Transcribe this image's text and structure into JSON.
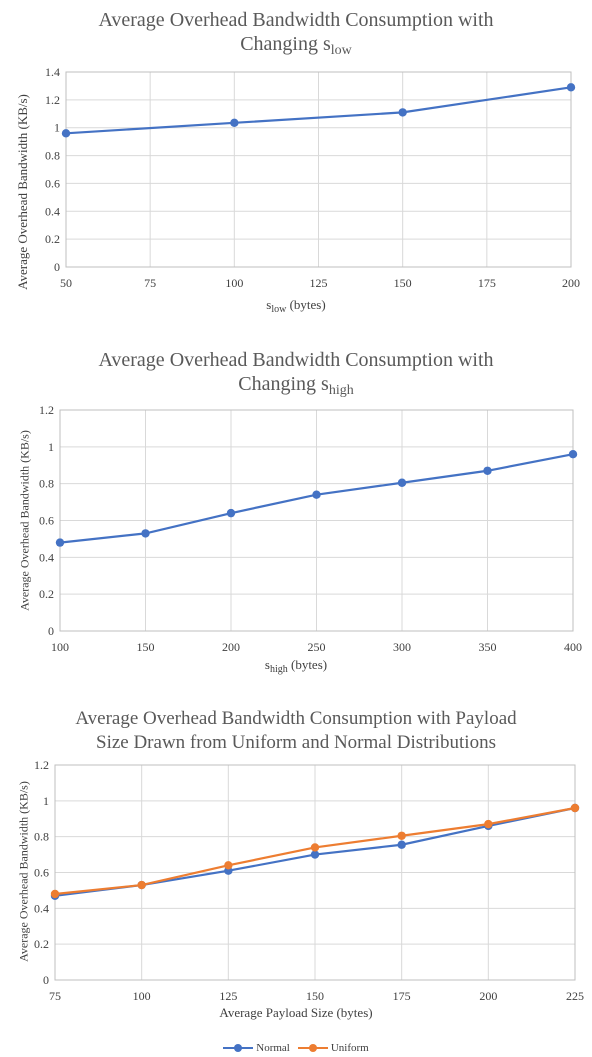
{
  "colors": {
    "normal": "#4472C4",
    "uniform": "#ED7D31",
    "grid": "#D9D9D9",
    "axis": "#BFBFBF"
  },
  "chart_data": [
    {
      "type": "line",
      "title_line1": "Average Overhead Bandwidth Consumption with",
      "title_line2_prefix": "Changing s",
      "title_line2_sub": "low",
      "xlabel_prefix": "s",
      "xlabel_sub": "low",
      "xlabel_suffix": " (bytes)",
      "ylabel": "Average Overhead Bandwidth (KB/s)",
      "xlim": [
        50,
        200
      ],
      "ylim": [
        0,
        1.4
      ],
      "xticks": [
        "50",
        "75",
        "100",
        "125",
        "150",
        "175",
        "200"
      ],
      "yticks": [
        "0",
        "0.2",
        "0.4",
        "0.6",
        "0.8",
        "1",
        "1.2",
        "1.4"
      ],
      "grid": true,
      "series": [
        {
          "color": "#4472C4",
          "x": [
            50,
            100,
            150,
            200
          ],
          "y": [
            0.96,
            1.035,
            1.11,
            1.29
          ]
        }
      ]
    },
    {
      "type": "line",
      "title_line1": "Average Overhead Bandwidth Consumption with",
      "title_line2_prefix": "Changing s",
      "title_line2_sub": "high",
      "xlabel_prefix": "s",
      "xlabel_sub": "high",
      "xlabel_suffix": " (bytes)",
      "ylabel": "Average Overhead Bandwidth (KB/s)",
      "xlim": [
        100,
        400
      ],
      "ylim": [
        0,
        1.2
      ],
      "xticks": [
        "100",
        "150",
        "200",
        "250",
        "300",
        "350",
        "400"
      ],
      "yticks": [
        "0",
        "0.2",
        "0.4",
        "0.6",
        "0.8",
        "1",
        "1.2"
      ],
      "grid": true,
      "series": [
        {
          "color": "#4472C4",
          "x": [
            100,
            150,
            200,
            250,
            300,
            350,
            400
          ],
          "y": [
            0.48,
            0.53,
            0.64,
            0.74,
            0.805,
            0.87,
            0.96
          ]
        }
      ]
    },
    {
      "type": "line",
      "title_line1": "Average Overhead Bandwidth Consumption with Payload",
      "title_line2_prefix": "Size Drawn from Uniform and Normal Distributions",
      "title_line2_sub": "",
      "xlabel_prefix": "Average Payload Size (bytes)",
      "xlabel_sub": "",
      "xlabel_suffix": "",
      "ylabel": "Average Overhead Bandwidth (KB/s)",
      "xlim": [
        75,
        225
      ],
      "ylim": [
        0,
        1.2
      ],
      "xticks": [
        "75",
        "100",
        "125",
        "150",
        "175",
        "200",
        "225"
      ],
      "yticks": [
        "0",
        "0.2",
        "0.4",
        "0.6",
        "0.8",
        "1",
        "1.2"
      ],
      "grid": true,
      "legend_position": "bottom",
      "series": [
        {
          "name": "Normal",
          "color": "#4472C4",
          "x": [
            75,
            100,
            125,
            150,
            175,
            200,
            225
          ],
          "y": [
            0.47,
            0.53,
            0.61,
            0.7,
            0.755,
            0.86,
            0.96
          ]
        },
        {
          "name": "Uniform",
          "color": "#ED7D31",
          "x": [
            75,
            100,
            125,
            150,
            175,
            200,
            225
          ],
          "y": [
            0.48,
            0.53,
            0.64,
            0.74,
            0.805,
            0.87,
            0.96
          ]
        }
      ]
    }
  ]
}
